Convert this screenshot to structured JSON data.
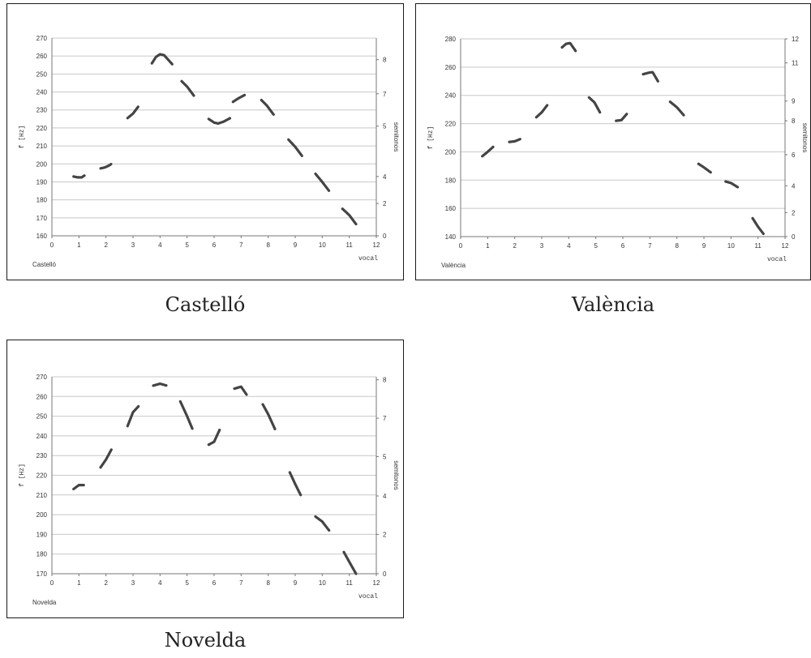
{
  "chart_data": [
    {
      "type": "scatter",
      "title": "",
      "caption": "Castelló",
      "inner_label": "Castelló",
      "xlabel": "vocal",
      "ylabel": "f [Hz]",
      "y2label": "semitonos",
      "xlim": [
        0,
        12
      ],
      "ylim": [
        160,
        270
      ],
      "x_ticks": [
        0,
        1,
        2,
        3,
        4,
        5,
        6,
        7,
        8,
        9,
        10,
        11,
        12
      ],
      "y_ticks": [
        160,
        170,
        180,
        190,
        200,
        210,
        220,
        230,
        240,
        250,
        260,
        270
      ],
      "y2_ticks": [
        0,
        2,
        4,
        5,
        7,
        8
      ],
      "y2_ticks_hz": [
        160,
        178,
        193,
        221,
        239,
        258
      ],
      "grid": true,
      "color": "#444444",
      "series": [
        {
          "x": [
            0.8,
            0.95,
            1.1,
            1.2
          ],
          "y": [
            193,
            192.5,
            192.5,
            193.5
          ]
        },
        {
          "x": [
            1.8,
            1.95,
            2.1,
            2.2
          ],
          "y": [
            197.5,
            198,
            199,
            200
          ]
        },
        {
          "x": [
            2.8,
            3.0,
            3.2
          ],
          "y": [
            225.5,
            228,
            232
          ]
        },
        {
          "x": [
            3.7,
            3.85,
            4.0,
            4.15,
            4.3,
            4.45
          ],
          "y": [
            256,
            259.5,
            261,
            260.5,
            258,
            255.5
          ]
        },
        {
          "x": [
            4.8,
            5.0,
            5.25
          ],
          "y": [
            246,
            243,
            238
          ]
        },
        {
          "x": [
            5.8,
            6.0,
            6.15,
            6.35,
            6.6
          ],
          "y": [
            225,
            223,
            222.5,
            223.5,
            225.5
          ]
        },
        {
          "x": [
            6.7,
            6.9,
            7.15
          ],
          "y": [
            234.5,
            236.5,
            238.5
          ]
        },
        {
          "x": [
            7.75,
            7.95,
            8.2
          ],
          "y": [
            235.5,
            232.5,
            227.5
          ]
        },
        {
          "x": [
            8.75,
            9.0,
            9.25
          ],
          "y": [
            213.5,
            209.5,
            204.5
          ]
        },
        {
          "x": [
            9.75,
            10.0,
            10.25
          ],
          "y": [
            194.5,
            190,
            185
          ]
        },
        {
          "x": [
            10.75,
            11.0,
            11.25
          ],
          "y": [
            175,
            171.5,
            166.5
          ]
        }
      ]
    },
    {
      "type": "scatter",
      "title": "",
      "caption": "València",
      "inner_label": "València",
      "xlabel": "vocal",
      "ylabel": "f [Hz]",
      "y2label": "semitonos",
      "xlim": [
        0,
        12
      ],
      "ylim": [
        140,
        280
      ],
      "x_ticks": [
        0,
        1,
        2,
        3,
        4,
        5,
        6,
        7,
        8,
        9,
        10,
        11,
        12
      ],
      "y_ticks": [
        140,
        160,
        180,
        200,
        220,
        240,
        260,
        280
      ],
      "y2_ticks": [
        0,
        2,
        4,
        6,
        8,
        9,
        11,
        12
      ],
      "y2_ticks_hz": [
        140,
        157,
        176,
        198,
        222,
        236,
        263,
        280
      ],
      "grid": true,
      "color": "#444444",
      "series": [
        {
          "x": [
            0.8,
            1.0,
            1.2
          ],
          "y": [
            197,
            200,
            203.5
          ]
        },
        {
          "x": [
            1.8,
            2.0,
            2.2
          ],
          "y": [
            207,
            207.5,
            209
          ]
        },
        {
          "x": [
            2.8,
            3.0,
            3.2
          ],
          "y": [
            224.5,
            228,
            233
          ]
        },
        {
          "x": [
            3.75,
            3.9,
            4.05,
            4.25
          ],
          "y": [
            274,
            276.5,
            277,
            271.5
          ]
        },
        {
          "x": [
            4.75,
            4.95,
            5.15
          ],
          "y": [
            238.5,
            235,
            228
          ]
        },
        {
          "x": [
            5.75,
            5.95,
            6.15
          ],
          "y": [
            222,
            222.5,
            227
          ]
        },
        {
          "x": [
            6.75,
            6.95,
            7.1,
            7.3
          ],
          "y": [
            255,
            256,
            256.5,
            250
          ]
        },
        {
          "x": [
            7.75,
            8.0,
            8.25
          ],
          "y": [
            235.5,
            231.5,
            226
          ]
        },
        {
          "x": [
            8.8,
            9.0,
            9.25
          ],
          "y": [
            191.5,
            189,
            185.5
          ]
        },
        {
          "x": [
            9.8,
            10.0,
            10.25
          ],
          "y": [
            179,
            178,
            175
          ]
        },
        {
          "x": [
            10.8,
            11.0,
            11.2
          ],
          "y": [
            153,
            147,
            142
          ]
        }
      ]
    },
    {
      "type": "scatter",
      "title": "",
      "caption": "Novelda",
      "inner_label": "Novelda",
      "xlabel": "vocal",
      "ylabel": "f [Hz]",
      "y2label": "semitonos",
      "xlim": [
        0,
        12
      ],
      "ylim": [
        170,
        270
      ],
      "x_ticks": [
        0,
        1,
        2,
        3,
        4,
        5,
        6,
        7,
        8,
        9,
        10,
        11,
        12
      ],
      "y_ticks": [
        170,
        180,
        190,
        200,
        210,
        220,
        230,
        240,
        250,
        260,
        270
      ],
      "y2_ticks": [
        0,
        2,
        4,
        5,
        7,
        8
      ],
      "y2_ticks_hz": [
        170,
        190,
        209.5,
        229.5,
        249,
        268.5
      ],
      "grid": true,
      "color": "#444444",
      "series": [
        {
          "x": [
            0.8,
            1.0,
            1.2
          ],
          "y": [
            213,
            215,
            215
          ]
        },
        {
          "x": [
            1.8,
            2.0,
            2.2
          ],
          "y": [
            224,
            228,
            233
          ]
        },
        {
          "x": [
            2.8,
            3.0,
            3.2
          ],
          "y": [
            245,
            252,
            255
          ]
        },
        {
          "x": [
            3.75,
            4.0,
            4.25
          ],
          "y": [
            265.5,
            266.5,
            265.5
          ]
        },
        {
          "x": [
            4.75,
            5.0,
            5.2
          ],
          "y": [
            257.5,
            250,
            243.5
          ]
        },
        {
          "x": [
            5.8,
            6.0,
            6.2
          ],
          "y": [
            235.5,
            237,
            243
          ]
        },
        {
          "x": [
            6.75,
            7.0,
            7.2
          ],
          "y": [
            264,
            265,
            261
          ]
        },
        {
          "x": [
            7.8,
            8.0,
            8.25
          ],
          "y": [
            256,
            251,
            243.5
          ]
        },
        {
          "x": [
            8.8,
            9.0,
            9.2
          ],
          "y": [
            221.5,
            215.5,
            210
          ]
        },
        {
          "x": [
            9.75,
            10.0,
            10.25
          ],
          "y": [
            199,
            196.5,
            192
          ]
        },
        {
          "x": [
            10.8,
            11.0,
            11.25
          ],
          "y": [
            181,
            176,
            170
          ]
        }
      ]
    }
  ]
}
